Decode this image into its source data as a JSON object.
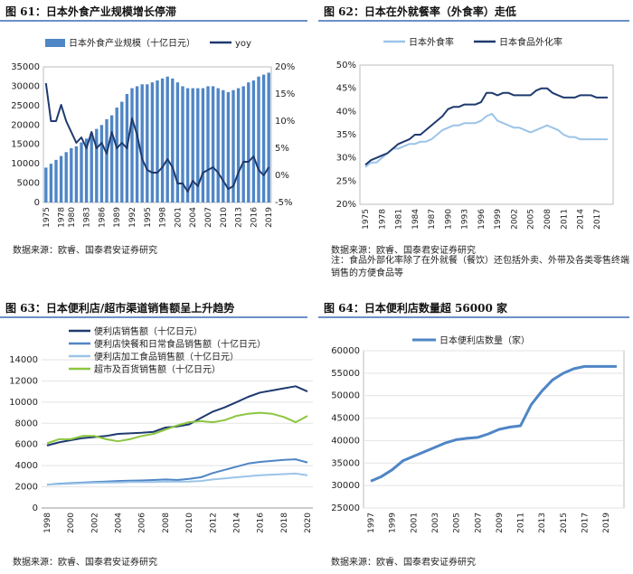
{
  "colors": {
    "accent": "#6a90c9",
    "bar": "#4f86c6",
    "navy": "#1f3a6e",
    "light": "#9cc4e8",
    "green": "#8cc63f",
    "gray": "#9a9a9a"
  },
  "panels": [
    {
      "title": "图 61：日本外食产业规模增长停滞",
      "source": "数据来源：欧睿、国泰君安证券研究"
    },
    {
      "title": "图 62：日本在外就餐率（外食率）走低",
      "source": "数据来源：欧睿、国泰君安证券研究",
      "note": "注：食品外部化率除了在外就餐（餐饮）还包括外卖、外带及各类零售终端销售的方便食品等"
    },
    {
      "title": "图 63：日本便利店/超市渠道销售额呈上升趋势",
      "source": "数据来源：欧睿、国泰君安证券研究"
    },
    {
      "title": "图 64：日本便利店数量超 56000 家",
      "source": "数据来源：欧睿、国泰君安证券研究"
    }
  ],
  "chart_data": [
    {
      "type": "bar",
      "legend": [
        "日本外食产业规模（十亿日元）",
        "yoy"
      ],
      "x": [
        1975,
        1976,
        1977,
        1978,
        1979,
        1980,
        1981,
        1982,
        1983,
        1984,
        1985,
        1986,
        1987,
        1988,
        1989,
        1990,
        1991,
        1992,
        1993,
        1994,
        1995,
        1996,
        1997,
        1998,
        1999,
        2000,
        2001,
        2002,
        2003,
        2004,
        2005,
        2006,
        2007,
        2008,
        2009,
        2010,
        2011,
        2012,
        2013,
        2014,
        2015,
        2016,
        2017,
        2018,
        2019
      ],
      "xticks": [
        "1975",
        "1978",
        "1980",
        "1983",
        "1986",
        "1989",
        "1992",
        "1995",
        "1998",
        "2001",
        "2004",
        "2007",
        "2010",
        "2013",
        "2016",
        "2019"
      ],
      "values": [
        9000,
        10000,
        11000,
        12000,
        13000,
        14000,
        14500,
        15500,
        16500,
        18000,
        19000,
        20000,
        21500,
        22500,
        24500,
        26000,
        28000,
        29500,
        30000,
        30500,
        30500,
        31000,
        31500,
        32000,
        32500,
        32000,
        31000,
        30000,
        29500,
        29500,
        29500,
        29500,
        30000,
        30000,
        29500,
        29000,
        28500,
        29000,
        29500,
        30000,
        31000,
        31500,
        32500,
        33000,
        33500
      ],
      "series": [
        {
          "name": "yoy",
          "values": [
            17,
            10,
            10,
            13,
            10,
            8,
            6,
            7,
            5,
            8,
            5,
            6,
            4,
            8,
            5,
            6,
            5,
            10.5,
            7.5,
            3,
            1,
            0.5,
            0.5,
            1.5,
            3,
            1.5,
            -1.5,
            -1.5,
            -3,
            -1,
            -2,
            0.5,
            1,
            1.5,
            0.5,
            -1,
            -2.5,
            -2,
            0.5,
            2.5,
            2.5,
            3.5,
            1,
            0,
            1.5
          ]
        }
      ],
      "y_left": [
        0,
        5000,
        10000,
        15000,
        20000,
        25000,
        30000,
        35000
      ],
      "y_right": [
        "-5%",
        "0%",
        "5%",
        "10%",
        "15%",
        "20%"
      ],
      "ylim": [
        0,
        35000
      ],
      "y2lim": [
        -5,
        20
      ]
    },
    {
      "type": "line",
      "legend": [
        "日本外食率",
        "日本食品外化率"
      ],
      "x": [
        1975,
        1976,
        1977,
        1978,
        1979,
        1980,
        1981,
        1982,
        1983,
        1984,
        1985,
        1986,
        1987,
        1988,
        1989,
        1990,
        1991,
        1992,
        1993,
        1994,
        1995,
        1996,
        1997,
        1998,
        1999,
        2000,
        2001,
        2002,
        2003,
        2004,
        2005,
        2006,
        2007,
        2008,
        2009,
        2010,
        2011,
        2012,
        2013,
        2014,
        2015,
        2016,
        2017,
        2018,
        2019
      ],
      "xticks": [
        "1975",
        "1978",
        "1981",
        "1984",
        "1987",
        "1990",
        "1993",
        "1996",
        "1999",
        "2002",
        "2005",
        "2008",
        "2011",
        "2014",
        "2017"
      ],
      "series": [
        {
          "name": "日本外食率",
          "values": [
            28,
            29,
            29,
            30,
            31,
            32,
            32,
            32.5,
            33,
            33,
            33.5,
            33.5,
            34,
            35,
            36,
            36.5,
            37,
            37,
            37.5,
            37.5,
            37.5,
            38,
            39,
            39.5,
            38,
            37.5,
            37,
            36.5,
            36.5,
            36,
            35.5,
            36,
            36.5,
            37,
            36.5,
            36,
            35,
            34.5,
            34.5,
            34,
            34,
            34,
            34,
            34,
            34
          ]
        },
        {
          "name": "日本食品外化率",
          "values": [
            28.5,
            29.5,
            30,
            30.5,
            31,
            32,
            33,
            33.5,
            34,
            35,
            35,
            36,
            37,
            38,
            39,
            40.5,
            41,
            41,
            41.5,
            41.5,
            41.5,
            42,
            44,
            44,
            43.5,
            44,
            44,
            43.5,
            43.5,
            43.5,
            43.5,
            44.5,
            45,
            45,
            44,
            43.5,
            43,
            43,
            43,
            43.5,
            43.5,
            43.5,
            43,
            43,
            43
          ]
        }
      ],
      "yticks": [
        "20%",
        "25%",
        "30%",
        "35%",
        "40%",
        "45%",
        "50%"
      ],
      "ylim": [
        20,
        50
      ]
    },
    {
      "type": "line",
      "x": [
        1998,
        1999,
        2000,
        2001,
        2002,
        2003,
        2004,
        2005,
        2006,
        2007,
        2008,
        2009,
        2010,
        2011,
        2012,
        2013,
        2014,
        2015,
        2016,
        2017,
        2018,
        2019,
        2020
      ],
      "xticks": [
        "1998",
        "2000",
        "2002",
        "2004",
        "2006",
        "2008",
        "2010",
        "2012",
        "2014",
        "2016",
        "2018",
        "2020"
      ],
      "series": [
        {
          "name": "便利店销售额（十亿日元）",
          "values": [
            5900,
            6200,
            6400,
            6600,
            6700,
            6800,
            7000,
            7050,
            7100,
            7200,
            7600,
            7700,
            7900,
            8500,
            9100,
            9500,
            10000,
            10500,
            10900,
            11100,
            11300,
            11500,
            11000
          ]
        },
        {
          "name": "便利店快餐和日常食品销售额（十亿日元）",
          "values": [
            2200,
            2300,
            2350,
            2400,
            2450,
            2500,
            2550,
            2580,
            2600,
            2650,
            2700,
            2650,
            2750,
            2900,
            3300,
            3600,
            3900,
            4200,
            4350,
            4450,
            4550,
            4600,
            4300
          ]
        },
        {
          "name": "便利店加工食品销售额（十亿日元）",
          "values": [
            2200,
            2250,
            2300,
            2350,
            2380,
            2400,
            2420,
            2450,
            2450,
            2450,
            2500,
            2480,
            2500,
            2550,
            2700,
            2800,
            2900,
            3000,
            3100,
            3150,
            3200,
            3250,
            3100
          ]
        },
        {
          "name": "超市及百货销售额（十亿日元）",
          "values": [
            6100,
            6500,
            6500,
            6800,
            6800,
            6500,
            6300,
            6500,
            6800,
            7000,
            7400,
            7800,
            8100,
            8200,
            8100,
            8300,
            8700,
            8900,
            9000,
            8900,
            8600,
            8100,
            8700
          ]
        }
      ],
      "yticks": [
        "0",
        "2000",
        "4000",
        "6000",
        "8000",
        "10000",
        "12000",
        "14000"
      ],
      "ylim": [
        0,
        14000
      ]
    },
    {
      "type": "line",
      "x": [
        1997,
        1998,
        1999,
        2000,
        2001,
        2002,
        2003,
        2004,
        2005,
        2006,
        2007,
        2008,
        2009,
        2010,
        2011,
        2012,
        2013,
        2014,
        2015,
        2016,
        2017,
        2018,
        2019,
        2020
      ],
      "xticks": [
        "1997",
        "1999",
        "2001",
        "2003",
        "2005",
        "2007",
        "2009",
        "2011",
        "2013",
        "2015",
        "2017",
        "2019"
      ],
      "series": [
        {
          "name": "日本便利店数量（家）",
          "values": [
            31000,
            32000,
            33500,
            35500,
            36500,
            37500,
            38500,
            39500,
            40200,
            40500,
            40700,
            41500,
            42500,
            43000,
            43300,
            48000,
            51000,
            53500,
            55000,
            56000,
            56500,
            56500,
            56500,
            56500
          ]
        }
      ],
      "yticks": [
        "25000",
        "30000",
        "35000",
        "40000",
        "45000",
        "50000",
        "55000",
        "60000"
      ],
      "ylim": [
        25000,
        60000
      ]
    }
  ]
}
